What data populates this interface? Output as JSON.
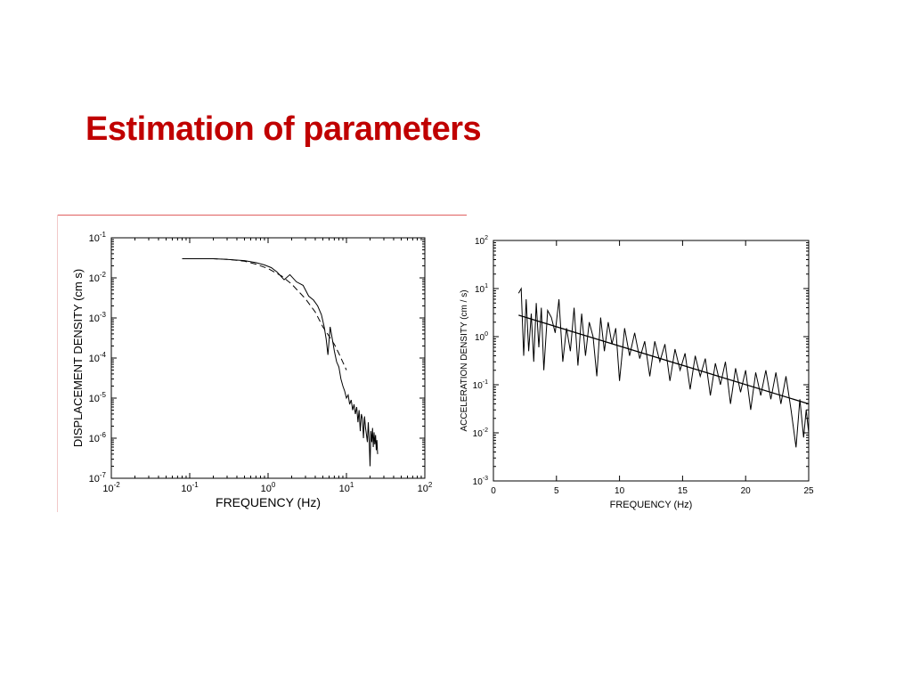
{
  "slide": {
    "title": "Estimation of parameters"
  },
  "chart_data": [
    {
      "type": "line",
      "xscale": "log",
      "yscale": "log",
      "xlim": [
        0.01,
        100
      ],
      "ylim": [
        1e-07,
        0.1
      ],
      "xticks": [
        {
          "value": 0.01,
          "base": "10",
          "exp": "-2"
        },
        {
          "value": 0.1,
          "base": "10",
          "exp": "-1"
        },
        {
          "value": 1,
          "base": "10",
          "exp": "0"
        },
        {
          "value": 10,
          "base": "10",
          "exp": "1"
        },
        {
          "value": 100,
          "base": "10",
          "exp": "2"
        }
      ],
      "yticks": [
        {
          "value": 1e-07,
          "base": "10",
          "exp": "-7"
        },
        {
          "value": 1e-06,
          "base": "10",
          "exp": "-6"
        },
        {
          "value": 1e-05,
          "base": "10",
          "exp": "-5"
        },
        {
          "value": 0.0001,
          "base": "10",
          "exp": "-4"
        },
        {
          "value": 0.001,
          "base": "10",
          "exp": "-3"
        },
        {
          "value": 0.01,
          "base": "10",
          "exp": "-2"
        },
        {
          "value": 0.1,
          "base": "10",
          "exp": "-1"
        }
      ],
      "xlabel": "FREQUENCY  (Hz)",
      "ylabel": "DISPLACEMENT  DENSITY  (cm  s)",
      "grid": false,
      "series": [
        {
          "style": "solid",
          "x": [
            0.08,
            0.2,
            0.3,
            0.5,
            0.7,
            0.9,
            1.1,
            1.3,
            1.6,
            1.9,
            2.3,
            2.8,
            3.3,
            3.8,
            4.3,
            4.8,
            5.2,
            5.5,
            5.8,
            6.2,
            6.6,
            7,
            7.5,
            8,
            8.5,
            9,
            9.5,
            10,
            10.5,
            11,
            11.5,
            12,
            12.5,
            13,
            13.5,
            14,
            14.5,
            15,
            15.5,
            16,
            16.5,
            17,
            17.5,
            18,
            18.5,
            19,
            19.5,
            20,
            20.5,
            21,
            21.5,
            22,
            22.5,
            23,
            23.5,
            24,
            24.5,
            25
          ],
          "y": [
            0.03,
            0.03,
            0.029,
            0.027,
            0.024,
            0.021,
            0.018,
            0.014,
            0.009,
            0.012,
            0.008,
            0.0065,
            0.0035,
            0.0028,
            0.002,
            0.0012,
            0.0006,
            0.0003,
            0.00012,
            0.0006,
            0.0003,
            0.00015,
            8e-05,
            6e-05,
            3e-05,
            2e-05,
            1.5e-05,
            1e-05,
            1.2e-05,
            7e-06,
            9e-06,
            5e-06,
            7e-06,
            4e-06,
            6e-06,
            2.5e-06,
            5e-06,
            1.5e-06,
            4e-06,
            3e-06,
            1e-06,
            3.5e-06,
            1.8e-06,
            1.2e-06,
            8e-07,
            2.5e-06,
            9e-07,
            2e-07,
            1.5e-06,
            8e-07,
            1.8e-06,
            6e-07,
            1.4e-06,
            7e-07,
            1.2e-06,
            5e-07,
            9e-07,
            4e-07
          ]
        },
        {
          "style": "dashed",
          "x": [
            0.08,
            0.2,
            0.3,
            0.5,
            0.7,
            1,
            1.5,
            2,
            3,
            4,
            5,
            6,
            7,
            8,
            10
          ],
          "y": [
            0.03,
            0.03,
            0.029,
            0.026,
            0.022,
            0.017,
            0.011,
            0.007,
            0.003,
            0.0014,
            0.0006,
            0.00035,
            0.00022,
            0.00013,
            5e-05
          ]
        }
      ]
    },
    {
      "type": "line",
      "xscale": "linear",
      "yscale": "log",
      "xlim": [
        0,
        25
      ],
      "ylim": [
        0.001,
        100
      ],
      "xticks": [
        {
          "value": 0,
          "label": "0"
        },
        {
          "value": 5,
          "label": "5"
        },
        {
          "value": 10,
          "label": "10"
        },
        {
          "value": 15,
          "label": "15"
        },
        {
          "value": 20,
          "label": "20"
        },
        {
          "value": 25,
          "label": "25"
        }
      ],
      "yticks": [
        {
          "value": 0.001,
          "base": "10",
          "exp": "-3"
        },
        {
          "value": 0.01,
          "base": "10",
          "exp": "-2"
        },
        {
          "value": 0.1,
          "base": "10",
          "exp": "-1"
        },
        {
          "value": 1,
          "base": "10",
          "exp": "0"
        },
        {
          "value": 10,
          "base": "10",
          "exp": "1"
        },
        {
          "value": 100,
          "base": "10",
          "exp": "2"
        }
      ],
      "xlabel": "FREQUENCY  (Hz)",
      "ylabel": "ACCELERATION  DENSITY  (cm / s)",
      "grid": false,
      "series": [
        {
          "style": "solid",
          "x": [
            2,
            2.2,
            2.4,
            2.6,
            2.8,
            3,
            3.2,
            3.4,
            3.6,
            3.8,
            4,
            4.3,
            4.6,
            4.9,
            5.2,
            5.5,
            5.8,
            6.1,
            6.4,
            6.7,
            7,
            7.3,
            7.6,
            7.9,
            8.2,
            8.5,
            8.8,
            9.1,
            9.4,
            9.7,
            10,
            10.4,
            10.8,
            11.2,
            11.6,
            12,
            12.4,
            12.8,
            13.2,
            13.6,
            14,
            14.4,
            14.8,
            15.2,
            15.6,
            16,
            16.4,
            16.8,
            17.2,
            17.6,
            18,
            18.4,
            18.8,
            19.2,
            19.6,
            20,
            20.4,
            20.8,
            21.2,
            21.6,
            22,
            22.4,
            22.8,
            23.2,
            23.6,
            24,
            24.3,
            24.6,
            24.8,
            25
          ],
          "y": [
            8,
            10,
            0.4,
            6,
            0.5,
            3,
            0.3,
            5,
            0.6,
            4,
            0.2,
            3.5,
            2.5,
            1.2,
            6,
            0.3,
            1.5,
            0.5,
            4,
            0.25,
            3,
            0.4,
            2,
            1,
            0.15,
            2.5,
            0.5,
            2,
            0.7,
            1.5,
            0.12,
            1.5,
            0.4,
            1.2,
            0.35,
            0.8,
            0.15,
            0.8,
            0.3,
            0.7,
            0.12,
            0.55,
            0.2,
            0.45,
            0.08,
            0.4,
            0.15,
            0.35,
            0.06,
            0.28,
            0.1,
            0.3,
            0.04,
            0.22,
            0.07,
            0.2,
            0.03,
            0.18,
            0.06,
            0.2,
            0.05,
            0.18,
            0.04,
            0.15,
            0.03,
            0.005,
            0.05,
            0.008,
            0.03,
            0.01
          ]
        },
        {
          "style": "fit",
          "x": [
            2,
            25
          ],
          "y": [
            2.8,
            0.04
          ]
        }
      ]
    }
  ]
}
